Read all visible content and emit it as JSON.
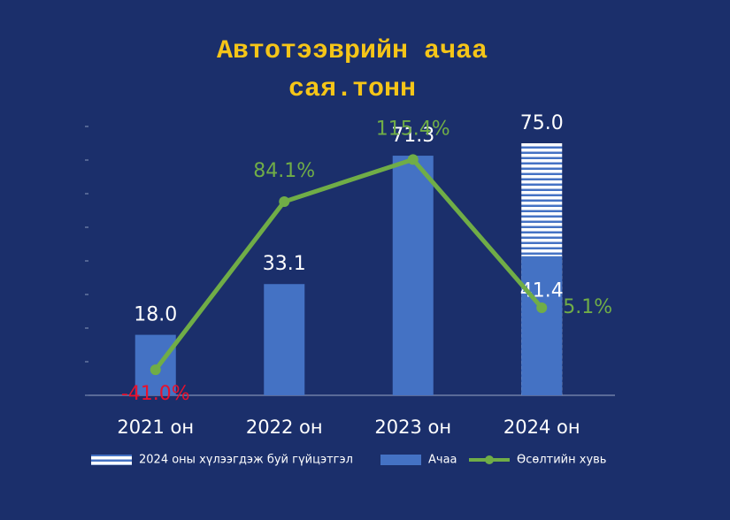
{
  "chart_data": {
    "type": "bar",
    "title": [
      "Автотээврийн ачаа",
      "сая.тонн"
    ],
    "categories": [
      "2021 он",
      "2022 он",
      "2023 он",
      "2024 он"
    ],
    "ylim": [
      0,
      80
    ],
    "yticks": [
      0,
      10,
      20,
      30,
      40,
      50,
      60,
      70,
      80
    ],
    "y2lim": [
      -60,
      140
    ],
    "series": [
      {
        "name": "2024 оны хүлээгдэж буй гүйцэтгэл",
        "type": "bar",
        "pattern": "striped",
        "color": "#ffffff",
        "values": [
          null,
          null,
          null,
          75.0
        ],
        "value_labels": [
          null,
          null,
          null,
          "75.0"
        ]
      },
      {
        "name": "Ачаа",
        "type": "bar",
        "color": "#4472c4",
        "values": [
          18.0,
          33.1,
          71.3,
          41.4
        ],
        "value_labels": [
          "18.0",
          "33.1",
          "71.3",
          "41.4"
        ]
      },
      {
        "name": "Өсөлтийн хувь",
        "type": "line",
        "axis": "y2",
        "color": "#70ad47",
        "values": [
          -41.0,
          84.1,
          115.4,
          5.1
        ],
        "value_labels": [
          "-41.0%",
          "84.1%",
          "115.4%",
          "5.1%"
        ],
        "label_colors": [
          "#e8112d",
          "#70ad47",
          "#70ad47",
          "#70ad47"
        ]
      }
    ]
  }
}
